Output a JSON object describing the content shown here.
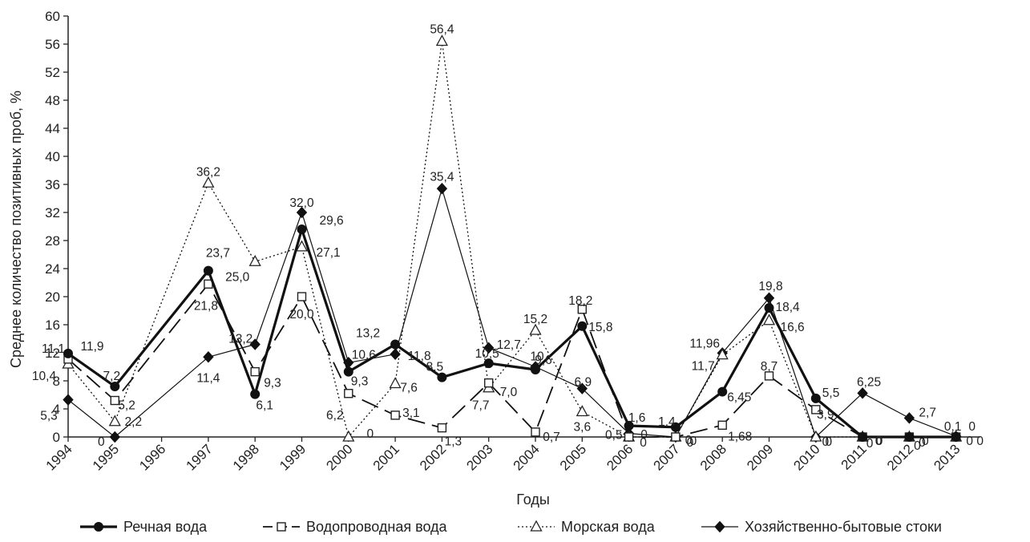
{
  "chart_data": {
    "type": "line",
    "xlabel": "Годы",
    "ylabel": "Среднее количество позитивных проб, %",
    "ylim": [
      0,
      60
    ],
    "yticks": [
      "0",
      "4",
      "8",
      "12",
      "16",
      "20",
      "24",
      "28",
      "32",
      "36",
      "40",
      "44",
      "48",
      "52",
      "56",
      "60"
    ],
    "categories": [
      "1994",
      "1995",
      "1996",
      "1997",
      "1998",
      "1999",
      "2000",
      "2001",
      "2002",
      "2003",
      "2004",
      "2005",
      "2006",
      "2007",
      "2008",
      "2009",
      "2010",
      "2011",
      "2012",
      "2013"
    ],
    "grid": false,
    "legend_position": "bottom",
    "series": [
      {
        "name": "Речная вода",
        "marker": "filled-circle",
        "line": "thick-solid",
        "values": [
          11.9,
          7.2,
          null,
          23.7,
          6.1,
          29.6,
          9.3,
          13.2,
          8.5,
          10.5,
          9.6,
          15.8,
          1.6,
          1.4,
          6.45,
          18.4,
          5.5,
          0,
          0,
          0
        ],
        "labels": [
          "11,9",
          "7,2",
          "",
          "23,7",
          "6,1",
          "29,6",
          "9,3",
          "13,2",
          "8,5",
          "10,5",
          "9,6",
          "15,8",
          "1,6",
          "1,4",
          "6,45",
          "18,4",
          "5,5",
          "0",
          "0",
          "0"
        ]
      },
      {
        "name": "Водопроводная вода",
        "marker": "open-square",
        "line": "long-dash",
        "values": [
          11.1,
          5.2,
          null,
          21.8,
          9.3,
          20.0,
          6.2,
          3.1,
          1.3,
          7.7,
          0.7,
          18.2,
          0,
          0,
          1.68,
          8.7,
          3.9,
          0,
          0,
          0
        ],
        "labels": [
          "11,1",
          "5,2",
          "",
          "21,8",
          "9,3",
          "20,0",
          "6,2",
          "3,1",
          "1,3",
          "7,7",
          "0,7",
          "18,2",
          "0",
          "0",
          "1,68",
          "8,7",
          "3,9",
          "0",
          "0",
          "0"
        ]
      },
      {
        "name": "Морская вода",
        "marker": "open-triangle",
        "line": "dotted",
        "values": [
          10.4,
          2.2,
          null,
          36.2,
          25.0,
          27.1,
          0,
          7.6,
          56.4,
          7.0,
          15.2,
          3.6,
          0,
          0,
          11.7,
          16.6,
          0,
          0,
          0,
          0
        ],
        "labels": [
          "10,4",
          "2,2",
          "",
          "36,2",
          "25,0",
          "27,1",
          "0",
          "7,6",
          "56,4",
          "7,0",
          "15,2",
          "3,6",
          "0",
          "0",
          "11,7",
          "16,6",
          "0",
          "0",
          "0",
          "0"
        ]
      },
      {
        "name": "Хозяйственно-бытовые стоки",
        "marker": "filled-diamond",
        "line": "thin-solid",
        "values": [
          5.3,
          0,
          null,
          11.4,
          13.2,
          32.0,
          10.6,
          11.8,
          35.4,
          12.7,
          10,
          6.9,
          0.5,
          0,
          11.96,
          19.8,
          0,
          6.25,
          2.7,
          0.1
        ],
        "labels": [
          "5,3",
          "0",
          "",
          "11,4",
          "13,2",
          "32,0",
          "10,6",
          "11,8",
          "35,4",
          "12,7",
          "10",
          "6,9",
          "0,5",
          "0",
          "11,96",
          "19,8",
          "0",
          "6,25",
          "2,7",
          "0,1"
        ]
      }
    ]
  }
}
